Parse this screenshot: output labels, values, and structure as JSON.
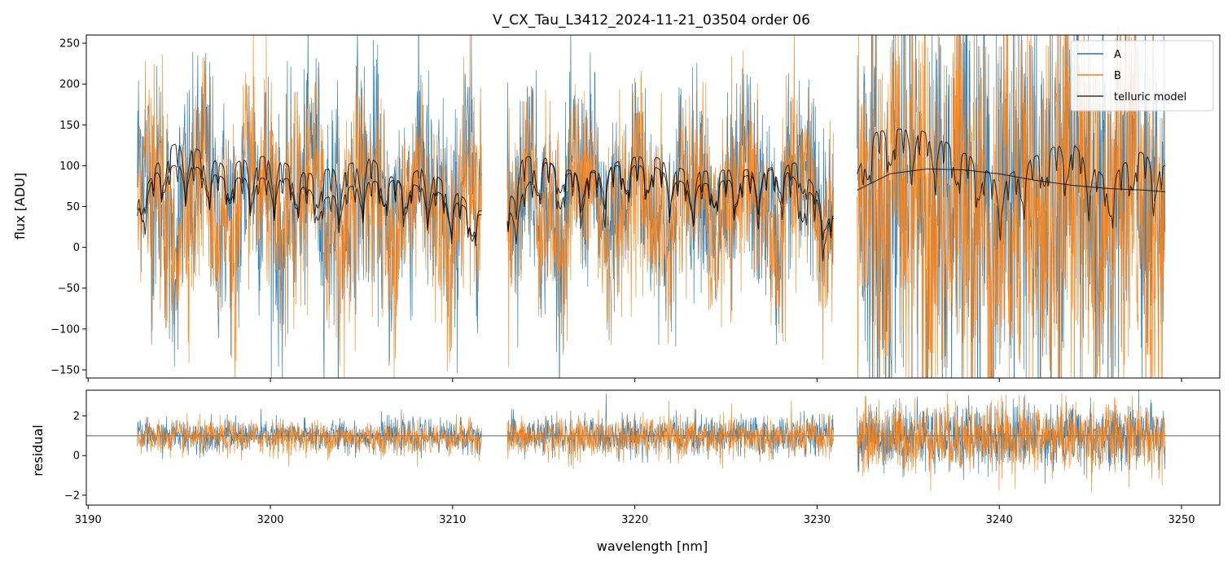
{
  "title": "V_CX_Tau_L3412_2024-11-21_03504  order 06",
  "colors": {
    "A": "#1f77b4",
    "B": "#ff7f0e",
    "telluric": "#000000"
  },
  "chart_data": [
    {
      "type": "line",
      "panel": "top",
      "ylabel": "flux [ADU]",
      "xlabel": "",
      "xlim": [
        3189.9,
        3252.1
      ],
      "ylim": [
        -160,
        260
      ],
      "xticks": [
        3190,
        3200,
        3210,
        3220,
        3230,
        3240,
        3250
      ],
      "yticks": [
        -150,
        -100,
        -50,
        0,
        50,
        100,
        150,
        200,
        250
      ],
      "ytick_labels": [
        "−150",
        "−100",
        "−50",
        "0",
        "50",
        "100",
        "150",
        "200",
        "250"
      ],
      "segments": [
        [
          3192.7,
          3211.6
        ],
        [
          3213.0,
          3230.9
        ],
        [
          3232.2,
          3249.1
        ]
      ],
      "legend": {
        "position": "top-right",
        "entries": [
          "A",
          "B",
          "telluric model"
        ]
      },
      "series": [
        {
          "name": "A",
          "color": "#1f77b4",
          "mean": 60,
          "spread": [
            130,
            110,
            220
          ],
          "note_values": "dense noisy spectrum"
        },
        {
          "name": "B",
          "color": "#ff7f0e",
          "mean": 50,
          "spread": [
            120,
            105,
            230
          ]
        },
        {
          "name": "telluric model",
          "color": "#000000",
          "upper": {
            "x": [
              3192.8,
              3193.2,
              3194.0,
              3195.0,
              3196.0,
              3197.5,
              3199.0,
              3200.0,
              3202.0,
              3204.0,
              3205.5,
              3207.0,
              3208.5,
              3209.5,
              3211.5,
              3213.0,
              3213.5,
              3215.0,
              3216.0,
              3218.0,
              3219.5,
              3221.0,
              3223.0,
              3225.0,
              3227.0,
              3228.0,
              3229.5,
              3230.9,
              3232.2,
              3233.0,
              3234.0,
              3235.5,
              3237.0,
              3238.5,
              3240.0,
              3242.5,
              3244.0,
              3246.0,
              3247.5,
              3249.0
            ],
            "y": [
              88,
              60,
              120,
              128,
              120,
              100,
              110,
              112,
              90,
              100,
              110,
              80,
              100,
              80,
              45,
              42,
              110,
              112,
              90,
              92,
              110,
              112,
              92,
              95,
              95,
              100,
              70,
              38,
              90,
              140,
              145,
              145,
              130,
              110,
              80,
              120,
              128,
              80,
              120,
              100
            ]
          },
          "lower": {
            "x": [
              3192.8,
              3194.0,
              3195.5,
              3197.5,
              3199.0,
              3201.0,
              3203.0,
              3205.0,
              3207.0,
              3209.0,
              3211.5,
              3213.0,
              3215.0,
              3217.0,
              3219.0,
              3221.0,
              3223.0,
              3225.0,
              3227.0,
              3229.0,
              3230.9,
              3232.2,
              3234.0,
              3236.0,
              3238.0,
              3240.0,
              3242.0,
              3244.0,
              3246.0,
              3248.0,
              3249.1
            ],
            "y": [
              68,
              98,
              102,
              85,
              85,
              84,
              60,
              80,
              82,
              70,
              40,
              40,
              105,
              90,
              100,
              100,
              75,
              82,
              92,
              105,
              35,
              70,
              90,
              96,
              95,
              90,
              82,
              76,
              72,
              70,
              68
            ]
          }
        }
      ]
    },
    {
      "type": "line",
      "panel": "bottom",
      "xlabel": "wavelength [nm]",
      "ylabel": "residual",
      "xlim": [
        3189.9,
        3252.1
      ],
      "ylim": [
        -2.5,
        3.3
      ],
      "xticks": [
        3190,
        3200,
        3210,
        3220,
        3230,
        3240,
        3250
      ],
      "yticks": [
        -2,
        0,
        2
      ],
      "ytick_labels": [
        "−2",
        "0",
        "2"
      ],
      "reference_line": 1,
      "series": [
        {
          "name": "A",
          "color": "#1f77b4",
          "mean": 1,
          "spread": [
            0.75,
            0.9,
            1.5
          ]
        },
        {
          "name": "B",
          "color": "#ff7f0e",
          "mean": 0.9,
          "spread": [
            0.8,
            0.95,
            1.6
          ]
        }
      ]
    }
  ]
}
